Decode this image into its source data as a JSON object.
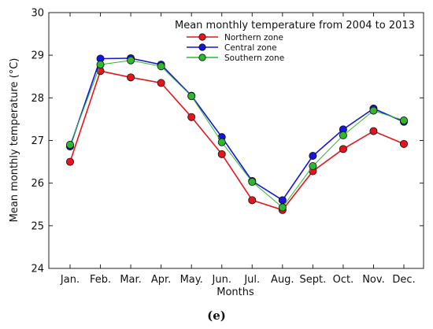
{
  "chart_data": {
    "type": "line",
    "title": "Mean monthly temperature from 2004 to 2013",
    "xlabel": "Months",
    "ylabel": "Mean monthly temperature (°C)",
    "ylim": [
      24,
      30
    ],
    "yticks": [
      24,
      25,
      26,
      27,
      28,
      29,
      30
    ],
    "categories": [
      "Jan.",
      "Feb.",
      "Mar.",
      "Apr.",
      "May.",
      "Jun.",
      "Jul.",
      "Aug.",
      "Sept.",
      "Oct.",
      "Nov.",
      "Dec."
    ],
    "series": [
      {
        "name": "Northern zone",
        "color": "#e8141a",
        "values": [
          26.5,
          28.63,
          28.48,
          28.35,
          27.55,
          26.68,
          25.6,
          25.37,
          26.28,
          26.8,
          27.22,
          26.92
        ]
      },
      {
        "name": "Central zone",
        "color": "#1515dc",
        "values": [
          26.86,
          28.92,
          28.93,
          28.78,
          28.05,
          27.08,
          26.05,
          25.6,
          26.64,
          27.26,
          27.75,
          27.44
        ]
      },
      {
        "name": "Southern zone",
        "color": "#2eb82e",
        "values": [
          26.9,
          28.78,
          28.88,
          28.74,
          28.04,
          26.96,
          26.03,
          25.43,
          26.4,
          27.12,
          27.7,
          27.47
        ]
      }
    ],
    "legend_position": "top-right",
    "grid": false
  },
  "caption": "(e)"
}
